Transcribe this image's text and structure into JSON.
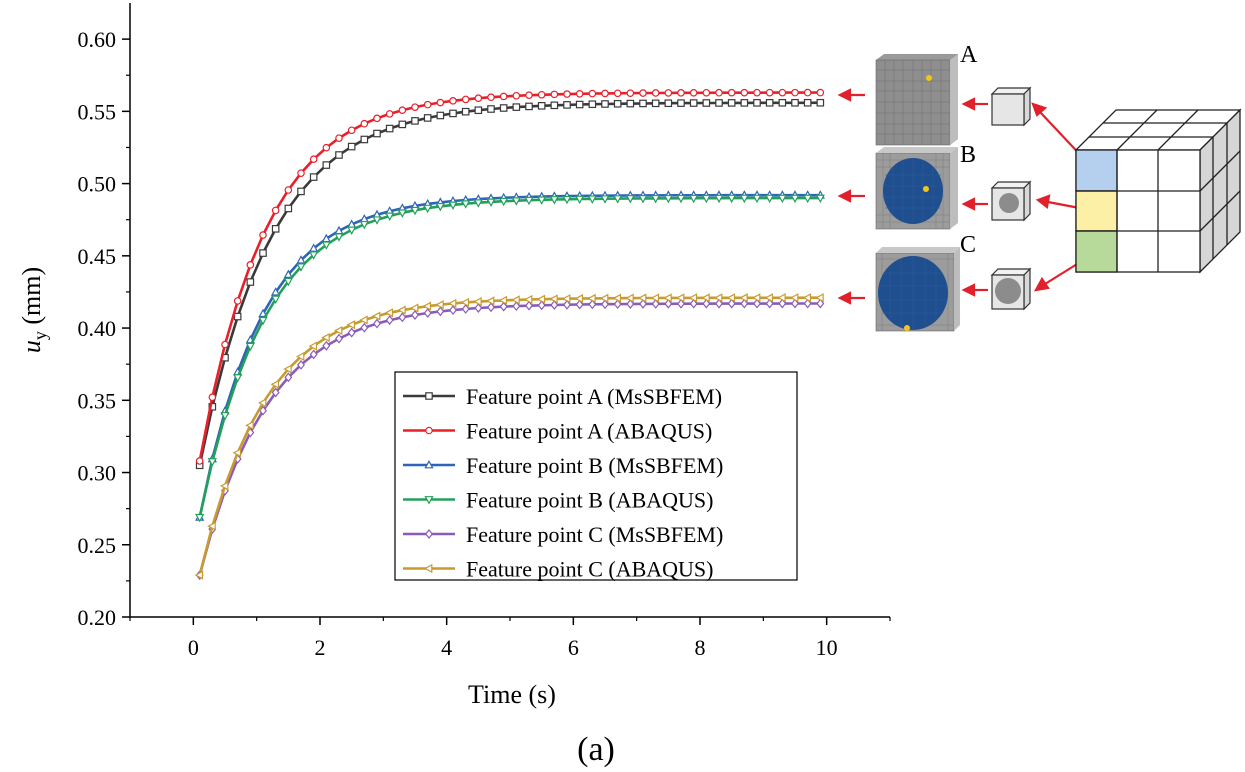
{
  "chart_data": {
    "type": "line",
    "title": "",
    "xlabel": "Time (s)",
    "ylabel_main": "u",
    "ylabel_sub": "y",
    "ylabel_unit": " (mm)",
    "xlim": [
      -1,
      11
    ],
    "ylim": [
      0.2,
      0.625
    ],
    "xticks": [
      0,
      2,
      4,
      6,
      8,
      10
    ],
    "yticks": [
      0.2,
      0.25,
      0.3,
      0.35,
      0.4,
      0.45,
      0.5,
      0.55,
      0.6
    ],
    "x": [
      0.1,
      0.3,
      0.5,
      0.7,
      0.9,
      1.1,
      1.3,
      1.5,
      1.7,
      1.9,
      2.1,
      2.3,
      2.5,
      2.7,
      2.9,
      3.1,
      3.3,
      3.5,
      3.7,
      3.9,
      4.1,
      4.3,
      4.5,
      4.7,
      4.9,
      5.1,
      5.3,
      5.5,
      5.7,
      5.9,
      6.1,
      6.3,
      6.5,
      6.7,
      6.9,
      7.1,
      7.3,
      7.5,
      7.7,
      7.9,
      8.1,
      8.3,
      8.5,
      8.7,
      8.9,
      9.1,
      9.3,
      9.5,
      9.7,
      9.9
    ],
    "legend_position": "bottom-center",
    "series": [
      {
        "name": "Feature point A (MsSBFEM)",
        "color": "#3a3a3a",
        "marker": "square",
        "start": 0.305,
        "end": 0.556,
        "rate": 0.88
      },
      {
        "name": "Feature point A (ABAQUS)",
        "color": "#e8202a",
        "marker": "circle",
        "start": 0.308,
        "end": 0.563,
        "rate": 0.95
      },
      {
        "name": "Feature point B (MsSBFEM)",
        "color": "#2d63b8",
        "marker": "triangle-up",
        "start": 0.269,
        "end": 0.492,
        "rate": 1.0
      },
      {
        "name": "Feature point B (ABAQUS)",
        "color": "#22a05a",
        "marker": "triangle-down",
        "start": 0.269,
        "end": 0.49,
        "rate": 0.96
      },
      {
        "name": "Feature point C (MsSBFEM)",
        "color": "#8a5bb8",
        "marker": "diamond",
        "start": 0.229,
        "end": 0.417,
        "rate": 0.93
      },
      {
        "name": "Feature point C (ABAQUS)",
        "color": "#c99a2e",
        "marker": "triangle-left",
        "start": 0.229,
        "end": 0.421,
        "rate": 0.97
      }
    ]
  },
  "inset": {
    "labels": [
      "A",
      "B",
      "C"
    ]
  },
  "caption": "(a)"
}
